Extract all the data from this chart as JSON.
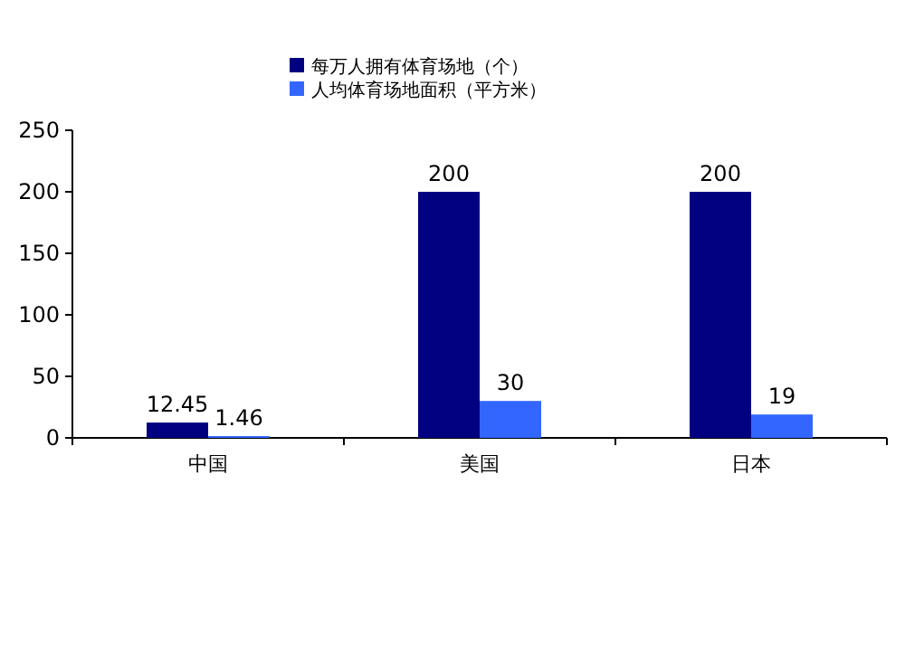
{
  "chart_data": {
    "type": "bar",
    "categories": [
      "中国",
      "美国",
      "日本"
    ],
    "series": [
      {
        "name": "每万人拥有体育场地（个）",
        "color": "#000080",
        "values": [
          12.45,
          200,
          200
        ]
      },
      {
        "name": "人均体育场地面积（平方米）",
        "color": "#3366ff",
        "values": [
          1.46,
          30,
          19
        ]
      }
    ],
    "ylim": [
      0,
      250
    ],
    "yticks": [
      0,
      50,
      100,
      150,
      200,
      250
    ],
    "data_labels": true,
    "legend": "top",
    "grid": false
  }
}
